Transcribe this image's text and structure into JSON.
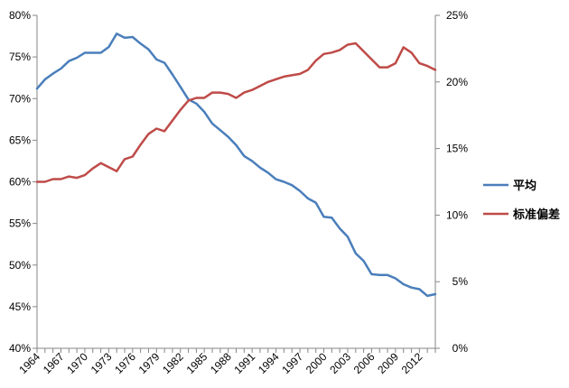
{
  "chart_data": {
    "type": "line",
    "title": "",
    "xlabel": "",
    "ylabel": "",
    "y2label": "",
    "grid": false,
    "legend_position": "right",
    "x": [
      1964,
      1965,
      1966,
      1967,
      1968,
      1969,
      1970,
      1971,
      1972,
      1973,
      1974,
      1975,
      1976,
      1977,
      1978,
      1979,
      1980,
      1981,
      1982,
      1983,
      1984,
      1985,
      1986,
      1987,
      1988,
      1989,
      1990,
      1991,
      1992,
      1993,
      1994,
      1995,
      1996,
      1997,
      1998,
      1999,
      2000,
      2001,
      2002,
      2003,
      2004,
      2005,
      2006,
      2007,
      2008,
      2009,
      2010,
      2011,
      2012,
      2013,
      2014
    ],
    "x_tick_labels": [
      "1964",
      "1967",
      "1970",
      "1973",
      "1976",
      "1979",
      "1982",
      "1985",
      "1988",
      "1991",
      "1994",
      "1997",
      "2000",
      "2003",
      "2006",
      "2009",
      "2012"
    ],
    "x_range": [
      1964,
      2014
    ],
    "y_left": {
      "range": [
        40,
        80
      ],
      "tick_labels": [
        "40%",
        "45%",
        "50%",
        "55%",
        "60%",
        "65%",
        "70%",
        "75%",
        "80%"
      ],
      "tick_values": [
        40,
        45,
        50,
        55,
        60,
        65,
        70,
        75,
        80
      ]
    },
    "y_right": {
      "range": [
        0,
        25
      ],
      "tick_labels": [
        "0%",
        "5%",
        "10%",
        "15%",
        "20%",
        "25%"
      ],
      "tick_values": [
        0,
        5,
        10,
        15,
        20,
        25
      ]
    },
    "series": [
      {
        "name": "平均",
        "axis": "left",
        "color": "#4a7ebb",
        "values": [
          71.2,
          72.3,
          73.0,
          73.6,
          74.5,
          74.9,
          75.5,
          75.5,
          75.5,
          76.2,
          77.8,
          77.3,
          77.4,
          76.6,
          75.9,
          74.7,
          74.3,
          72.9,
          71.4,
          69.9,
          69.4,
          68.4,
          67.0,
          66.2,
          65.4,
          64.4,
          63.1,
          62.5,
          61.7,
          61.1,
          60.3,
          60.0,
          59.6,
          58.9,
          58.0,
          57.5,
          55.8,
          55.7,
          54.4,
          53.4,
          51.4,
          50.5,
          48.9,
          48.8,
          48.8,
          48.4,
          47.7,
          47.3,
          47.1,
          46.3,
          46.5
        ]
      },
      {
        "name": "标准偏差",
        "axis": "right",
        "color": "#be4b48",
        "values": [
          12.5,
          12.5,
          12.7,
          12.7,
          12.9,
          12.8,
          13.0,
          13.5,
          13.9,
          13.6,
          13.3,
          14.2,
          14.4,
          15.3,
          16.1,
          16.5,
          16.3,
          17.1,
          17.9,
          18.6,
          18.8,
          18.8,
          19.2,
          19.2,
          19.1,
          18.8,
          19.2,
          19.4,
          19.7,
          20.0,
          20.2,
          20.4,
          20.5,
          20.6,
          20.9,
          21.6,
          22.1,
          22.2,
          22.4,
          22.8,
          22.9,
          22.3,
          21.7,
          21.1,
          21.1,
          21.4,
          22.6,
          22.2,
          21.4,
          21.2,
          20.9
        ]
      }
    ]
  }
}
